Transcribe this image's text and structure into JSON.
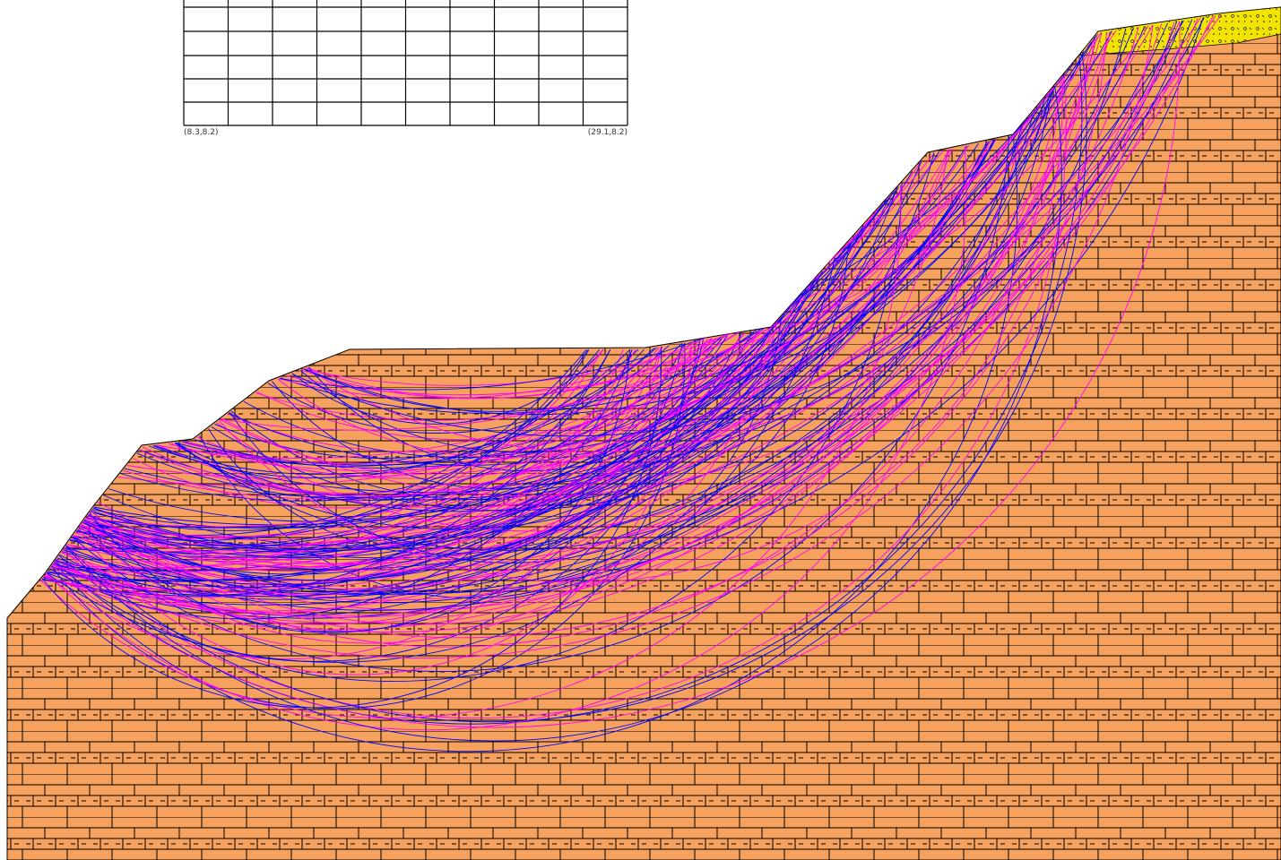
{
  "grid": {
    "corner_labels": [
      "(8.3,8.2)",
      "(29.1,8.2)"
    ]
  }
}
